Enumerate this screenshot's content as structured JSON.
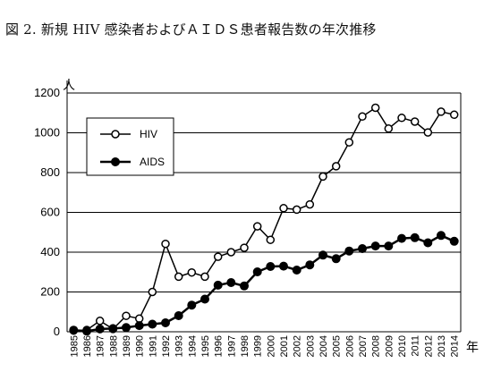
{
  "chart_data": {
    "type": "line",
    "title": "図 2.  新規 HIV 感染者およびＡＩＤＳ患者報告数の年次推移",
    "ylabel": "人",
    "xlabel": "年",
    "ylim": [
      0,
      1200
    ],
    "yticks": [
      0,
      200,
      400,
      600,
      800,
      1000,
      1200
    ],
    "grid": true,
    "legend_position": "top-left",
    "categories": [
      "1985",
      "1986",
      "1987",
      "1988",
      "1989",
      "1990",
      "1991",
      "1992",
      "1993",
      "1994",
      "1995",
      "1996",
      "1997",
      "1998",
      "1999",
      "2000",
      "2001",
      "2002",
      "2003",
      "2004",
      "2005",
      "2006",
      "2007",
      "2008",
      "2009",
      "2010",
      "2011",
      "2012",
      "2013",
      "2014"
    ],
    "series": [
      {
        "name": "HIV",
        "marker": "open-circle",
        "color": "#000000",
        "values": [
          6,
          9,
          55,
          14,
          80,
          66,
          200,
          442,
          277,
          298,
          277,
          377,
          400,
          422,
          530,
          462,
          621,
          614,
          640,
          780,
          832,
          952,
          1082,
          1126,
          1021,
          1075,
          1056,
          1002,
          1106,
          1091
        ]
      },
      {
        "name": "AIDS",
        "marker": "filled-circle",
        "color": "#000000",
        "values": [
          8,
          3,
          14,
          16,
          21,
          31,
          38,
          45,
          81,
          134,
          164,
          234,
          247,
          230,
          301,
          328,
          330,
          310,
          336,
          385,
          367,
          406,
          418,
          431,
          431,
          469,
          473,
          447,
          484,
          455
        ]
      }
    ]
  }
}
